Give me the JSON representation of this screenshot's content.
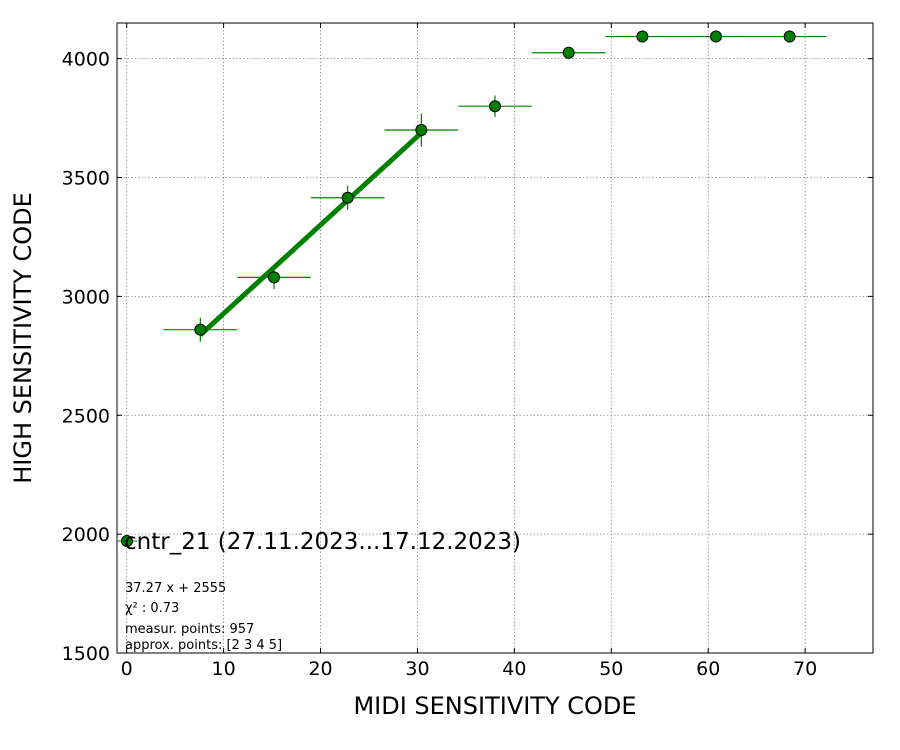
{
  "chart_data": {
    "type": "scatter",
    "title": "",
    "xlabel": "MIDI SENSITIVITY CODE",
    "ylabel": "HIGH SENSITIVITY CODE",
    "xlim": [
      -1,
      77
    ],
    "ylim": [
      1500,
      4150
    ],
    "xticks": [
      0,
      10,
      20,
      30,
      40,
      50,
      60,
      70
    ],
    "yticks": [
      1500,
      2000,
      2500,
      3000,
      3500,
      4000
    ],
    "grid": true,
    "colors": {
      "points": "#008000",
      "edge": "#000000",
      "fit": "#008000"
    },
    "series": [
      {
        "name": "cntr_21 (27.11.2023...17.12.2023)",
        "points": [
          {
            "x": 7.6,
            "y": 2860,
            "xerr": 3.8,
            "yerr": 50
          },
          {
            "x": 15.2,
            "y": 3080,
            "xerr": 3.8,
            "yerr": 50
          },
          {
            "x": 22.8,
            "y": 3415,
            "xerr": 3.8,
            "yerr": 50
          },
          {
            "x": 30.4,
            "y": 3700,
            "xerr": 3.8,
            "yerr": 70
          },
          {
            "x": 38.0,
            "y": 3800,
            "xerr": 3.8,
            "yerr": 45
          },
          {
            "x": 45.6,
            "y": 4025,
            "xerr": 3.8,
            "yerr": 0
          },
          {
            "x": 53.2,
            "y": 4093,
            "xerr": 3.8,
            "yerr": 0
          },
          {
            "x": 60.8,
            "y": 4093,
            "xerr": 3.8,
            "yerr": 0
          },
          {
            "x": 68.4,
            "y": 4093,
            "xerr": 3.8,
            "yerr": 0
          }
        ]
      }
    ],
    "fit": {
      "slope": 37.27,
      "intercept": 2555,
      "x_range": [
        7.6,
        30.4
      ]
    },
    "legend": {
      "label": "cntr_21 (27.11.2023...17.12.2023)",
      "placement": "lower-left"
    },
    "annotations": [
      "37.27 x + 2555",
      "χ² : 0.73",
      "measur. points: 957",
      "approx. points: [2 3 4 5]"
    ]
  }
}
